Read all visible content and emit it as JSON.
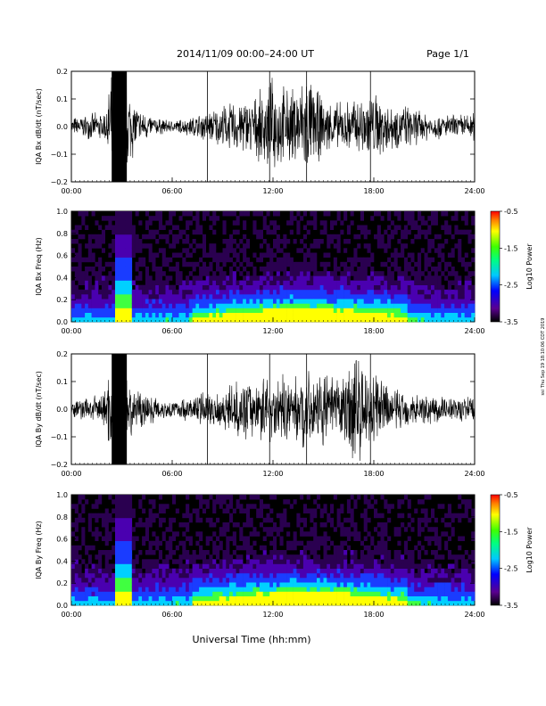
{
  "header": {
    "title": "2014/11/09   00:00–24:00 UT",
    "page": "Page 1/1"
  },
  "side_note": "ssi Thu Sep 19 18:10:06 CDT 2019",
  "footer": {
    "xlabel": "Universal Time (hh:mm)"
  },
  "x_ticks": [
    "00:00",
    "06:00",
    "12:00",
    "18:00",
    "24:00"
  ],
  "chart_data": [
    {
      "type": "line",
      "title": "",
      "ylabel": "IQA Bx dB/dt (nT/sec)",
      "xlabel": "",
      "xlim": [
        0,
        24
      ],
      "ylim": [
        -0.2,
        0.2
      ],
      "yticks": [
        "0.2",
        "0.1",
        "0.0",
        "−0.1",
        "−0.2"
      ],
      "x": [
        0,
        1,
        2,
        2.5,
        2.7,
        3,
        3.3,
        4,
        5,
        6,
        7,
        8,
        9,
        10,
        11,
        12,
        13,
        14,
        15,
        16,
        17,
        18,
        19,
        20,
        21,
        22,
        23,
        24
      ],
      "series": [
        {
          "envelope": [
            0.03,
            0.04,
            0.05,
            0.2,
            0.2,
            0.2,
            0.15,
            0.06,
            0.03,
            0.02,
            0.03,
            0.05,
            0.07,
            0.09,
            0.1,
            0.16,
            0.12,
            0.18,
            0.09,
            0.08,
            0.1,
            0.12,
            0.08,
            0.07,
            0.05,
            0.04,
            0.04,
            0.05
          ]
        }
      ]
    },
    {
      "type": "heatmap",
      "title": "",
      "ylabel": "IQA Bx Freq (Hz)",
      "xlim": [
        0,
        24
      ],
      "ylim": [
        0.0,
        1.0
      ],
      "yticks": [
        "1.0",
        "0.8",
        "0.6",
        "0.4",
        "0.2",
        "0.0"
      ],
      "colorbar": {
        "label": "Log10 Power",
        "ticks": [
          "-0.5",
          "-1.5",
          "-2.5",
          "-3.5"
        ],
        "range": [
          -3.5,
          -0.5
        ]
      }
    },
    {
      "type": "line",
      "title": "",
      "ylabel": "IQA By dB/dt (nT/sec)",
      "xlabel": "",
      "xlim": [
        0,
        24
      ],
      "ylim": [
        -0.2,
        0.2
      ],
      "yticks": [
        "0.2",
        "0.1",
        "0.0",
        "−0.1",
        "−0.2"
      ],
      "x": [
        0,
        1,
        2,
        2.5,
        2.7,
        3,
        3.3,
        4,
        5,
        6,
        7,
        8,
        9,
        10,
        11,
        12,
        13,
        14,
        15,
        16,
        17,
        18,
        19,
        20,
        21,
        22,
        23,
        24
      ],
      "series": [
        {
          "envelope": [
            0.03,
            0.04,
            0.06,
            0.2,
            0.2,
            0.2,
            0.12,
            0.07,
            0.04,
            0.03,
            0.04,
            0.06,
            0.07,
            0.09,
            0.1,
            0.12,
            0.1,
            0.13,
            0.12,
            0.1,
            0.2,
            0.12,
            0.08,
            0.06,
            0.05,
            0.05,
            0.04,
            0.05
          ]
        }
      ]
    },
    {
      "type": "heatmap",
      "title": "",
      "ylabel": "IQA By Freq (Hz)",
      "xlim": [
        0,
        24
      ],
      "ylim": [
        0.0,
        1.0
      ],
      "yticks": [
        "1.0",
        "0.8",
        "0.6",
        "0.4",
        "0.2",
        "0.0"
      ],
      "colorbar": {
        "label": "Log10 Power",
        "ticks": [
          "-0.5",
          "-1.5",
          "-2.5",
          "-3.5"
        ],
        "range": [
          -3.5,
          -0.5
        ]
      }
    }
  ]
}
